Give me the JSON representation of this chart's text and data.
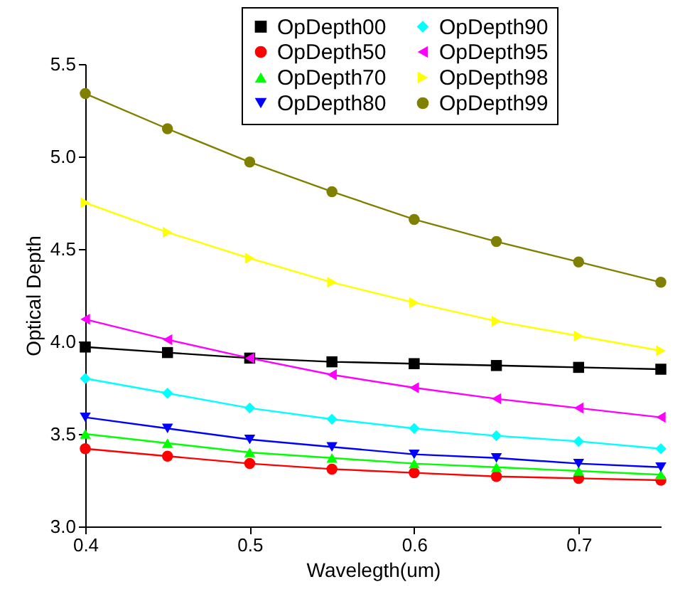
{
  "chart_data": {
    "type": "line",
    "xlabel": "Wavelegth(um)",
    "ylabel": "Optical Depth",
    "x": [
      0.4,
      0.45,
      0.5,
      0.55,
      0.6,
      0.65,
      0.7,
      0.75
    ],
    "xlim": [
      0.4,
      0.75
    ],
    "xticks": [
      0.4,
      0.5,
      0.6,
      0.7
    ],
    "ylim": [
      3.0,
      5.5
    ],
    "yticks": [
      {
        "value": 3,
        "label": "3.0"
      },
      3.5,
      {
        "value": 4,
        "label": "4.0"
      },
      4.5,
      {
        "value": 5,
        "label": "5.0"
      },
      5.5
    ],
    "grid": false,
    "legend": "top right",
    "line_style": "solid",
    "series": [
      {
        "name": "OpDepth00",
        "color": "#000000",
        "marker": "square",
        "values": [
          3.97,
          3.94,
          3.91,
          3.89,
          3.88,
          3.87,
          3.86,
          3.85
        ]
      },
      {
        "name": "OpDepth50",
        "color": "#ff0000",
        "marker": "circle",
        "values": [
          3.42,
          3.38,
          3.34,
          3.31,
          3.29,
          3.27,
          3.26,
          3.25
        ]
      },
      {
        "name": "OpDepth70",
        "color": "#00ff00",
        "marker": "triangle",
        "values": [
          3.5,
          3.45,
          3.4,
          3.37,
          3.34,
          3.32,
          3.3,
          3.28
        ]
      },
      {
        "name": "OpDepth80",
        "color": "#0000ff",
        "marker": "triangle-down",
        "values": [
          3.59,
          3.53,
          3.47,
          3.43,
          3.39,
          3.37,
          3.34,
          3.32
        ]
      },
      {
        "name": "OpDepth90",
        "color": "#00ffff",
        "marker": "diamond",
        "values": [
          3.8,
          3.72,
          3.64,
          3.58,
          3.53,
          3.49,
          3.46,
          3.42
        ]
      },
      {
        "name": "OpDepth95",
        "color": "#ff00ff",
        "marker": "triangle-left",
        "values": [
          4.12,
          4.01,
          3.91,
          3.82,
          3.75,
          3.69,
          3.64,
          3.59
        ]
      },
      {
        "name": "OpDepth98",
        "color": "#ffff00",
        "marker": "triangle-right",
        "values": [
          4.75,
          4.59,
          4.45,
          4.32,
          4.21,
          4.11,
          4.03,
          3.95
        ]
      },
      {
        "name": "OpDepth99",
        "color": "#808000",
        "marker": "circle",
        "values": [
          5.34,
          5.15,
          4.97,
          4.81,
          4.66,
          4.54,
          4.43,
          4.32
        ]
      }
    ]
  }
}
